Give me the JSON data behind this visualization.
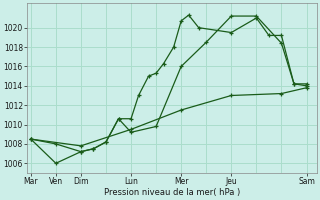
{
  "background_color": "#cceee8",
  "grid_color": "#aaddcc",
  "line_color": "#1a5c1a",
  "xlabel": "Pression niveau de la mer( hPa )",
  "ylim": [
    1005.0,
    1022.5
  ],
  "yticks": [
    1006,
    1008,
    1010,
    1012,
    1014,
    1016,
    1018,
    1020
  ],
  "x_major_positions": [
    0,
    1,
    2,
    4,
    6,
    8,
    11
  ],
  "x_major_labels": [
    "Mar",
    "Ven",
    "Dim",
    "Lun",
    "Mer",
    "Jeu",
    "Sam"
  ],
  "x_minor_positions": [
    0,
    1,
    2,
    3,
    4,
    5,
    6,
    7,
    8,
    9,
    10,
    11
  ],
  "xlim": [
    -0.15,
    11.4
  ],
  "series1_x": [
    0,
    1,
    2,
    2.5,
    3,
    3.5,
    4,
    4.3,
    4.7,
    5.0,
    5.3,
    5.7,
    6.0,
    6.3,
    6.7,
    8,
    9.0,
    9.5,
    10,
    10.5,
    11
  ],
  "series1_y": [
    1008.5,
    1008.0,
    1007.2,
    1007.5,
    1008.2,
    1010.6,
    1010.6,
    1013.0,
    1015.0,
    1015.3,
    1016.3,
    1018.0,
    1020.7,
    1021.3,
    1020.0,
    1019.5,
    1021.0,
    1019.2,
    1019.2,
    1014.2,
    1014.0
  ],
  "series2_x": [
    0,
    1,
    2,
    2.5,
    3,
    3.5,
    4.0,
    5.0,
    6.0,
    7.0,
    8.0,
    9.0,
    10.0,
    10.5,
    11
  ],
  "series2_y": [
    1008.5,
    1006.0,
    1007.2,
    1007.5,
    1008.2,
    1010.6,
    1009.2,
    1009.8,
    1016.0,
    1018.5,
    1021.2,
    1021.2,
    1018.4,
    1014.2,
    1014.2
  ],
  "series3_x": [
    0,
    2,
    4,
    6,
    8,
    10,
    11
  ],
  "series3_y": [
    1008.5,
    1007.8,
    1009.5,
    1011.5,
    1013.0,
    1013.2,
    1013.8
  ]
}
